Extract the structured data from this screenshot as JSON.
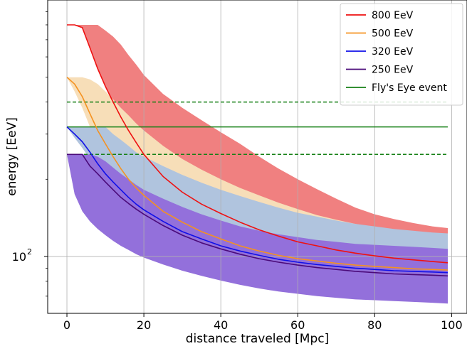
{
  "chart_data": {
    "type": "line",
    "xlabel": "distance traveled [Mpc]",
    "ylabel": "energy [EeV]",
    "xlim": [
      -5,
      104
    ],
    "ylim": [
      60,
      1000
    ],
    "y_scale": "log",
    "grid": true,
    "legend_position": "top-right",
    "x_ticks": [
      0,
      20,
      40,
      60,
      80,
      100
    ],
    "x_tick_labels": [
      "0",
      "20",
      "40",
      "60",
      "80",
      "100"
    ],
    "y_tick_labels": [
      {
        "value": 100,
        "base": "10",
        "exponent": "2"
      }
    ],
    "legend": [
      {
        "label": "800 EeV",
        "color": "#ee1111"
      },
      {
        "label": "500 EeV",
        "color": "#f59220"
      },
      {
        "label": "320 EeV",
        "color": "#1010e8"
      },
      {
        "label": "250 EeV",
        "color": "#4b0b7a"
      },
      {
        "label": "Fly's Eye event",
        "color": "#168016"
      }
    ],
    "x": [
      0,
      2,
      4,
      6,
      8,
      10,
      12,
      14,
      16,
      18,
      20,
      25,
      30,
      35,
      40,
      45,
      50,
      55,
      60,
      65,
      70,
      75,
      80,
      85,
      90,
      95,
      99
    ],
    "series": [
      {
        "name": "800 EeV",
        "color": "#ee1111",
        "band_color": "#f08080",
        "values": [
          800,
          800,
          780,
          650,
          540,
          460,
          400,
          350,
          310,
          278,
          250,
          205,
          178,
          160,
          147,
          136,
          127,
          120,
          114,
          110,
          106,
          103,
          100.5,
          98.5,
          97,
          95.5,
          94.5
        ],
        "upper": [
          800,
          800,
          800,
          800,
          800,
          760,
          720,
          670,
          610,
          560,
          510,
          430,
          380,
          340,
          305,
          275,
          245,
          220,
          200,
          183,
          168,
          155,
          146,
          140,
          135,
          131,
          129
        ],
        "lower": [
          800,
          800,
          780,
          650,
          540,
          460,
          400,
          350,
          300,
          255,
          240,
          190,
          160,
          140,
          126,
          117,
          110,
          104,
          99,
          95,
          92,
          89,
          87,
          85.5,
          84,
          82.5,
          81.5
        ]
      },
      {
        "name": "500 EeV",
        "color": "#f59220",
        "band_color": "#f7deb8",
        "values": [
          500,
          470,
          420,
          360,
          310,
          275,
          245,
          220,
          200,
          185,
          173,
          150,
          136,
          125,
          117,
          110,
          105,
          101,
          98,
          96,
          94,
          92.5,
          91.5,
          90.5,
          89.5,
          89,
          88.5
        ],
        "upper": [
          500,
          500,
          500,
          490,
          470,
          440,
          410,
          380,
          355,
          330,
          310,
          270,
          240,
          218,
          200,
          185,
          173,
          162,
          153,
          145,
          139,
          134,
          130,
          127,
          124,
          122,
          121
        ],
        "lower": [
          500,
          440,
          380,
          320,
          270,
          240,
          215,
          195,
          180,
          168,
          158,
          138,
          122,
          112,
          105,
          100,
          96,
          93,
          90.5,
          88.5,
          86.5,
          85,
          84,
          83,
          82,
          81.5,
          81
        ]
      },
      {
        "name": "320 EeV",
        "color": "#1010e8",
        "band_color": "#b0c4de",
        "values": [
          320,
          300,
          280,
          255,
          230,
          210,
          195,
          182,
          170,
          160,
          152,
          137,
          125,
          117,
          110,
          105,
          101,
          97.5,
          95,
          93,
          91.5,
          90,
          89,
          88,
          87.5,
          87,
          86.5
        ],
        "upper": [
          320,
          320,
          320,
          320,
          320,
          320,
          300,
          285,
          270,
          255,
          245,
          225,
          208,
          194,
          182,
          172,
          163,
          155,
          148,
          143,
          138,
          134,
          131,
          128,
          126,
          124,
          123
        ],
        "lower": [
          320,
          290,
          265,
          240,
          215,
          195,
          180,
          168,
          157,
          148,
          140,
          126,
          115,
          108,
          102,
          97,
          93.5,
          90.5,
          88,
          86,
          84.5,
          83,
          82,
          81,
          80.5,
          80,
          79.5
        ]
      },
      {
        "name": "250 EeV",
        "color": "#4b0b7a",
        "band_color": "#9370db",
        "values": [
          250,
          250,
          250,
          225,
          210,
          195,
          182,
          170,
          161,
          153,
          146,
          132,
          121,
          113,
          107,
          102,
          98,
          95,
          92.5,
          90.5,
          89,
          87.5,
          86.5,
          85.5,
          85,
          84.5,
          84
        ],
        "upper": [
          250,
          250,
          250,
          250,
          245,
          235,
          222,
          210,
          200,
          190,
          182,
          168,
          156,
          146,
          138,
          131,
          126,
          122,
          119,
          116,
          114,
          112,
          111,
          110,
          109,
          108,
          107
        ],
        "lower": [
          250,
          175,
          150,
          137,
          128,
          121,
          115,
          110,
          106,
          102,
          99,
          93,
          88,
          84,
          80.5,
          77.5,
          75,
          73,
          71.5,
          70,
          69,
          68,
          67.5,
          67,
          66.5,
          66,
          65.5
        ]
      }
    ],
    "horizontal_lines": [
      {
        "name": "Fly's Eye event",
        "y": 320,
        "style": "solid",
        "color": "#168016",
        "x_range": [
          0,
          99
        ]
      },
      {
        "name": "Fly's Eye event upper bound",
        "y": 400,
        "style": "dashed",
        "color": "#168016",
        "x_range": [
          0,
          99
        ]
      },
      {
        "name": "Fly's Eye event lower bound",
        "y": 250,
        "style": "dashed",
        "color": "#168016",
        "x_range": [
          0,
          99
        ]
      }
    ]
  }
}
